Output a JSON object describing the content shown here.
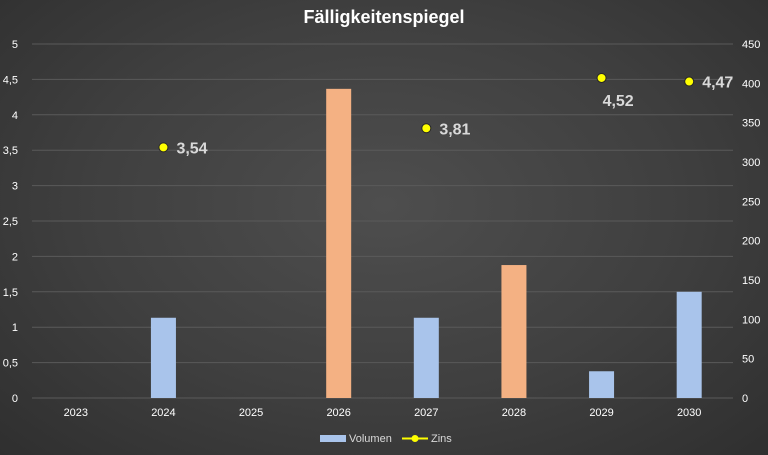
{
  "chart_data": {
    "type": "bar",
    "title": "Fälligkeitenspiegel",
    "categories": [
      "2023",
      "2024",
      "2025",
      "2026",
      "2027",
      "2028",
      "2029",
      "2030"
    ],
    "series": [
      {
        "name": "Volumen",
        "kind": "bar",
        "axis": "secondary",
        "values": [
          0,
          102,
          0,
          393,
          102,
          169,
          34,
          135
        ],
        "colors": [
          "#a9c4eb",
          "#a9c4eb",
          "#a9c4eb",
          "#f4b183",
          "#a9c4eb",
          "#f4b183",
          "#a9c4eb",
          "#a9c4eb"
        ]
      },
      {
        "name": "Zins",
        "kind": "scatter",
        "axis": "primary",
        "values": [
          null,
          3.54,
          null,
          null,
          3.81,
          null,
          4.52,
          4.47
        ],
        "value_labels": [
          null,
          "3,54",
          null,
          null,
          "3,81",
          null,
          "4,52",
          "4,47"
        ],
        "color": "#ffff00"
      }
    ],
    "y_left": {
      "min": 0,
      "max": 5,
      "ticks": [
        "0",
        "0,5",
        "1",
        "1,5",
        "2",
        "2,5",
        "3",
        "3,5",
        "4",
        "4,5",
        "5"
      ]
    },
    "y_right": {
      "min": 0,
      "max": 450,
      "ticks": [
        "0",
        "50",
        "100",
        "150",
        "200",
        "250",
        "300",
        "350",
        "400",
        "450"
      ]
    },
    "grid": true,
    "legend": "bottom",
    "xlabel": "",
    "ylabel": ""
  }
}
